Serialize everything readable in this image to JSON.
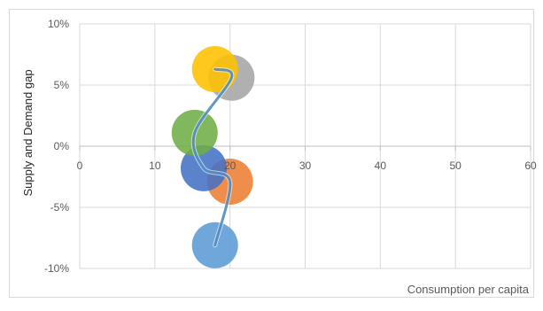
{
  "chart_data": {
    "type": "bubble",
    "title": "",
    "xlabel": "Consumption per capita",
    "ylabel": "Supply and Demand gap",
    "xlim": [
      0,
      60
    ],
    "ylim": [
      -10,
      10
    ],
    "x_ticks": [
      "0",
      "10",
      "20",
      "30",
      "40",
      "50",
      "60"
    ],
    "y_ticks": [
      "-10%",
      "-5%",
      "0%",
      "5%",
      "10%"
    ],
    "y_tick_values": [
      -10,
      -5,
      0,
      5,
      10
    ],
    "x_tick_values": [
      0,
      10,
      20,
      30,
      40,
      50,
      60
    ],
    "grid": true,
    "legend": "none",
    "points": [
      {
        "x": 18,
        "y": -8.1,
        "color": "#5b9bd5"
      },
      {
        "x": 20,
        "y": -2.9,
        "color": "#ed7d31"
      },
      {
        "x": 16.5,
        "y": -1.8,
        "color": "#4472c4"
      },
      {
        "x": 15.3,
        "y": 1.1,
        "color": "#70ad47"
      },
      {
        "x": 20.2,
        "y": 5.6,
        "color": "#a5a5a5"
      },
      {
        "x": 18,
        "y": 6.3,
        "color": "#ffc000"
      }
    ],
    "trend_line_color": "#2e75b6"
  }
}
